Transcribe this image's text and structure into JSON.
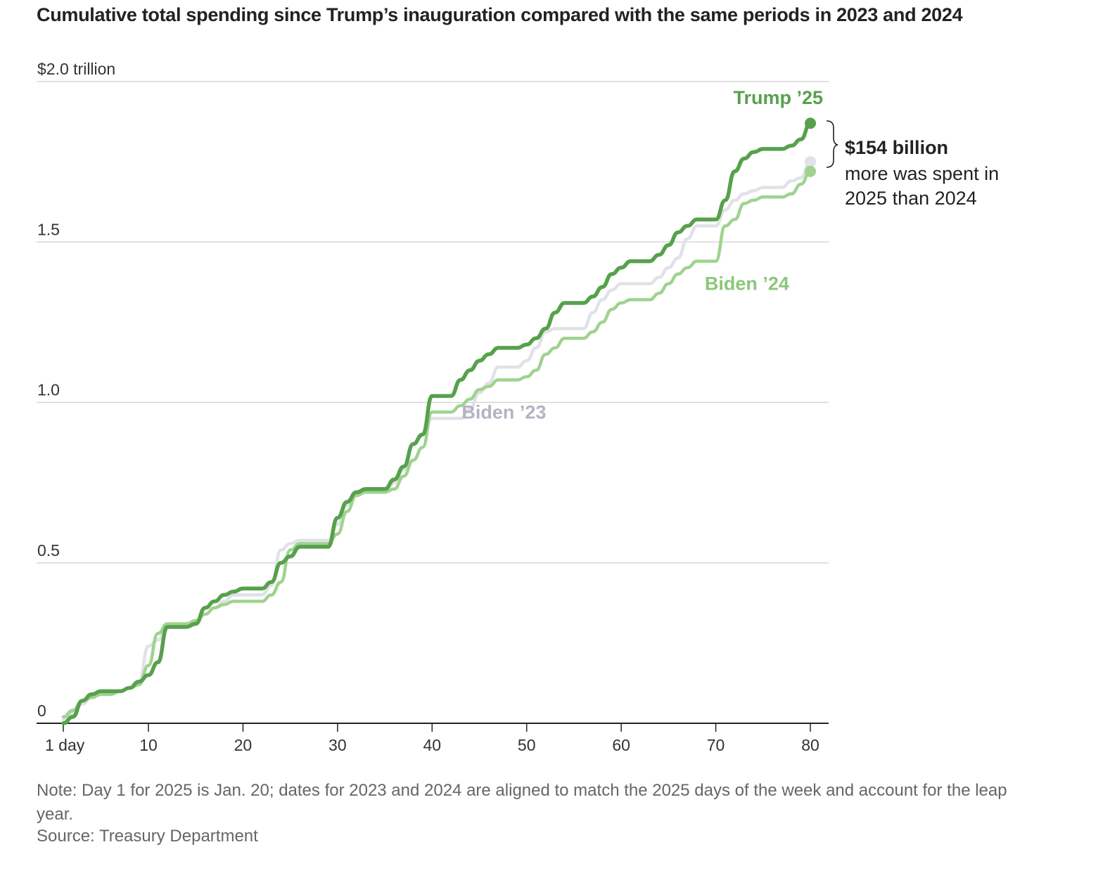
{
  "header": {
    "title": "Cumulative total spending since Trump’s inauguration compared with the same periods in 2023 and 2024"
  },
  "footer": {
    "note": "Note: Day 1 for 2025 is Jan. 20; dates for 2023 and 2024 are aligned to match the 2025 days of the week and account for the leap year.",
    "source": "Source: Treasury Department"
  },
  "annotation": {
    "amount": "$154 billion",
    "line1": "more was spent in",
    "line2": "2025 than 2024"
  },
  "colors": {
    "trump25": "#57a14d",
    "biden24": "#9fd38f",
    "biden23": "#e1e1e8",
    "biden23_label": "#b3b3c3",
    "grid": "#d6d6d6",
    "axis": "#222222"
  },
  "chart_data": {
    "type": "line",
    "title": "Cumulative total spending since Trump’s inauguration compared with the same periods in 2023 and 2024",
    "xlabel": "",
    "ylabel": "",
    "xlim": [
      1,
      80
    ],
    "ylim": [
      0,
      2.0
    ],
    "x_ticks": [
      {
        "value": 1,
        "label": "1 day"
      },
      {
        "value": 10,
        "label": "10"
      },
      {
        "value": 20,
        "label": "20"
      },
      {
        "value": 30,
        "label": "30"
      },
      {
        "value": 40,
        "label": "40"
      },
      {
        "value": 50,
        "label": "50"
      },
      {
        "value": 60,
        "label": "60"
      },
      {
        "value": 70,
        "label": "70"
      },
      {
        "value": 80,
        "label": "80"
      }
    ],
    "y_ticks": [
      {
        "value": 0,
        "label": "0"
      },
      {
        "value": 0.5,
        "label": "0.5"
      },
      {
        "value": 1.0,
        "label": "1.0"
      },
      {
        "value": 1.5,
        "label": "1.5"
      },
      {
        "value": 2.0,
        "label": "$2.0 trillion"
      }
    ],
    "grid": true,
    "series": [
      {
        "name": "Biden ’23",
        "key": "biden23",
        "label_anchor": [
          47.6,
          0.95
        ],
        "points": [
          [
            1,
            0.01
          ],
          [
            2,
            0.03
          ],
          [
            3,
            0.06
          ],
          [
            4,
            0.08
          ],
          [
            5,
            0.09
          ],
          [
            6,
            0.09
          ],
          [
            7,
            0.1
          ],
          [
            8,
            0.11
          ],
          [
            9,
            0.13
          ],
          [
            10,
            0.24
          ],
          [
            11,
            0.26
          ],
          [
            12,
            0.3
          ],
          [
            13,
            0.3
          ],
          [
            14,
            0.3
          ],
          [
            15,
            0.31
          ],
          [
            16,
            0.34
          ],
          [
            17,
            0.36
          ],
          [
            18,
            0.38
          ],
          [
            19,
            0.4
          ],
          [
            20,
            0.4
          ],
          [
            21,
            0.4
          ],
          [
            22,
            0.4
          ],
          [
            23,
            0.43
          ],
          [
            24,
            0.54
          ],
          [
            25,
            0.56
          ],
          [
            26,
            0.57
          ],
          [
            27,
            0.57
          ],
          [
            28,
            0.57
          ],
          [
            29,
            0.57
          ],
          [
            30,
            0.62
          ],
          [
            31,
            0.68
          ],
          [
            32,
            0.72
          ],
          [
            33,
            0.72
          ],
          [
            34,
            0.72
          ],
          [
            35,
            0.72
          ],
          [
            36,
            0.75
          ],
          [
            37,
            0.79
          ],
          [
            38,
            0.87
          ],
          [
            39,
            0.9
          ],
          [
            40,
            0.95
          ],
          [
            41,
            0.95
          ],
          [
            42,
            0.95
          ],
          [
            43,
            0.95
          ],
          [
            44,
            0.98
          ],
          [
            45,
            1.03
          ],
          [
            46,
            1.06
          ],
          [
            47,
            1.11
          ],
          [
            48,
            1.11
          ],
          [
            49,
            1.11
          ],
          [
            50,
            1.13
          ],
          [
            51,
            1.17
          ],
          [
            52,
            1.22
          ],
          [
            53,
            1.23
          ],
          [
            54,
            1.23
          ],
          [
            55,
            1.23
          ],
          [
            56,
            1.23
          ],
          [
            57,
            1.28
          ],
          [
            58,
            1.32
          ],
          [
            59,
            1.35
          ],
          [
            60,
            1.37
          ],
          [
            61,
            1.37
          ],
          [
            62,
            1.37
          ],
          [
            63,
            1.37
          ],
          [
            64,
            1.39
          ],
          [
            65,
            1.42
          ],
          [
            66,
            1.45
          ],
          [
            67,
            1.51
          ],
          [
            68,
            1.55
          ],
          [
            69,
            1.55
          ],
          [
            70,
            1.55
          ],
          [
            71,
            1.6
          ],
          [
            72,
            1.63
          ],
          [
            73,
            1.65
          ],
          [
            74,
            1.66
          ],
          [
            75,
            1.67
          ],
          [
            76,
            1.67
          ],
          [
            77,
            1.67
          ],
          [
            78,
            1.69
          ],
          [
            79,
            1.7
          ],
          [
            80,
            1.75
          ]
        ]
      },
      {
        "name": "Biden ’24",
        "key": "biden24",
        "label_anchor": [
          73.3,
          1.35
        ],
        "points": [
          [
            1,
            0.02
          ],
          [
            2,
            0.04
          ],
          [
            3,
            0.07
          ],
          [
            4,
            0.08
          ],
          [
            5,
            0.09
          ],
          [
            6,
            0.09
          ],
          [
            7,
            0.1
          ],
          [
            8,
            0.11
          ],
          [
            9,
            0.12
          ],
          [
            10,
            0.18
          ],
          [
            11,
            0.28
          ],
          [
            12,
            0.31
          ],
          [
            13,
            0.31
          ],
          [
            14,
            0.31
          ],
          [
            15,
            0.32
          ],
          [
            16,
            0.34
          ],
          [
            17,
            0.36
          ],
          [
            18,
            0.37
          ],
          [
            19,
            0.38
          ],
          [
            20,
            0.38
          ],
          [
            21,
            0.38
          ],
          [
            22,
            0.38
          ],
          [
            23,
            0.4
          ],
          [
            24,
            0.44
          ],
          [
            25,
            0.54
          ],
          [
            26,
            0.56
          ],
          [
            27,
            0.56
          ],
          [
            28,
            0.56
          ],
          [
            29,
            0.56
          ],
          [
            30,
            0.59
          ],
          [
            31,
            0.66
          ],
          [
            32,
            0.71
          ],
          [
            33,
            0.72
          ],
          [
            34,
            0.72
          ],
          [
            35,
            0.72
          ],
          [
            36,
            0.73
          ],
          [
            37,
            0.77
          ],
          [
            38,
            0.82
          ],
          [
            39,
            0.86
          ],
          [
            40,
            0.97
          ],
          [
            41,
            0.97
          ],
          [
            42,
            0.97
          ],
          [
            43,
            0.99
          ],
          [
            44,
            1.01
          ],
          [
            45,
            1.04
          ],
          [
            46,
            1.05
          ],
          [
            47,
            1.07
          ],
          [
            48,
            1.07
          ],
          [
            49,
            1.07
          ],
          [
            50,
            1.08
          ],
          [
            51,
            1.1
          ],
          [
            52,
            1.15
          ],
          [
            53,
            1.17
          ],
          [
            54,
            1.2
          ],
          [
            55,
            1.2
          ],
          [
            56,
            1.2
          ],
          [
            57,
            1.22
          ],
          [
            58,
            1.25
          ],
          [
            59,
            1.29
          ],
          [
            60,
            1.31
          ],
          [
            61,
            1.32
          ],
          [
            62,
            1.32
          ],
          [
            63,
            1.32
          ],
          [
            64,
            1.34
          ],
          [
            65,
            1.37
          ],
          [
            66,
            1.4
          ],
          [
            67,
            1.42
          ],
          [
            68,
            1.44
          ],
          [
            69,
            1.44
          ],
          [
            70,
            1.44
          ],
          [
            71,
            1.55
          ],
          [
            72,
            1.57
          ],
          [
            73,
            1.62
          ],
          [
            74,
            1.63
          ],
          [
            75,
            1.64
          ],
          [
            76,
            1.64
          ],
          [
            77,
            1.64
          ],
          [
            78,
            1.65
          ],
          [
            79,
            1.68
          ],
          [
            80,
            1.72
          ]
        ]
      },
      {
        "name": "Trump ’25",
        "key": "trump25",
        "label_anchor": [
          76.6,
          1.93
        ],
        "points": [
          [
            1,
            0.0
          ],
          [
            2,
            0.02
          ],
          [
            3,
            0.07
          ],
          [
            4,
            0.09
          ],
          [
            5,
            0.1
          ],
          [
            6,
            0.1
          ],
          [
            7,
            0.1
          ],
          [
            8,
            0.11
          ],
          [
            9,
            0.13
          ],
          [
            10,
            0.15
          ],
          [
            11,
            0.19
          ],
          [
            12,
            0.3
          ],
          [
            13,
            0.3
          ],
          [
            14,
            0.3
          ],
          [
            15,
            0.31
          ],
          [
            16,
            0.36
          ],
          [
            17,
            0.38
          ],
          [
            18,
            0.4
          ],
          [
            19,
            0.41
          ],
          [
            20,
            0.42
          ],
          [
            21,
            0.42
          ],
          [
            22,
            0.42
          ],
          [
            23,
            0.44
          ],
          [
            24,
            0.5
          ],
          [
            25,
            0.52
          ],
          [
            26,
            0.55
          ],
          [
            27,
            0.55
          ],
          [
            28,
            0.55
          ],
          [
            29,
            0.55
          ],
          [
            30,
            0.64
          ],
          [
            31,
            0.69
          ],
          [
            32,
            0.72
          ],
          [
            33,
            0.73
          ],
          [
            34,
            0.73
          ],
          [
            35,
            0.73
          ],
          [
            36,
            0.76
          ],
          [
            37,
            0.8
          ],
          [
            38,
            0.87
          ],
          [
            39,
            0.9
          ],
          [
            40,
            1.02
          ],
          [
            41,
            1.02
          ],
          [
            42,
            1.02
          ],
          [
            43,
            1.07
          ],
          [
            44,
            1.1
          ],
          [
            45,
            1.13
          ],
          [
            46,
            1.15
          ],
          [
            47,
            1.17
          ],
          [
            48,
            1.17
          ],
          [
            49,
            1.17
          ],
          [
            50,
            1.18
          ],
          [
            51,
            1.2
          ],
          [
            52,
            1.23
          ],
          [
            53,
            1.28
          ],
          [
            54,
            1.31
          ],
          [
            55,
            1.31
          ],
          [
            56,
            1.31
          ],
          [
            57,
            1.33
          ],
          [
            58,
            1.36
          ],
          [
            59,
            1.4
          ],
          [
            60,
            1.42
          ],
          [
            61,
            1.44
          ],
          [
            62,
            1.44
          ],
          [
            63,
            1.44
          ],
          [
            64,
            1.46
          ],
          [
            65,
            1.49
          ],
          [
            66,
            1.53
          ],
          [
            67,
            1.55
          ],
          [
            68,
            1.57
          ],
          [
            69,
            1.57
          ],
          [
            70,
            1.57
          ],
          [
            71,
            1.63
          ],
          [
            72,
            1.72
          ],
          [
            73,
            1.76
          ],
          [
            74,
            1.78
          ],
          [
            75,
            1.79
          ],
          [
            76,
            1.79
          ],
          [
            77,
            1.79
          ],
          [
            78,
            1.8
          ],
          [
            79,
            1.82
          ],
          [
            80,
            1.87
          ]
        ]
      }
    ]
  }
}
